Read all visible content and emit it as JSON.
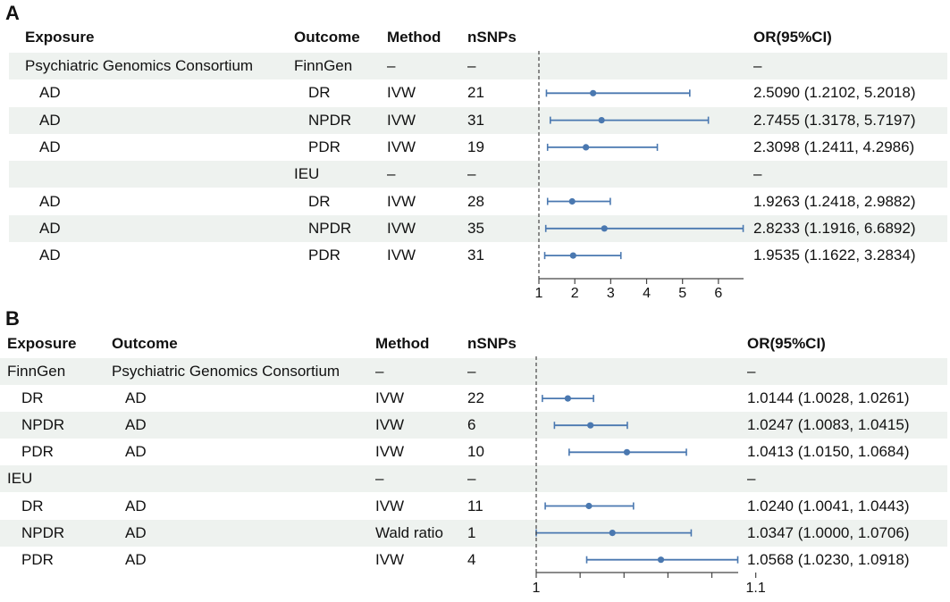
{
  "chart_data": [
    {
      "panel_label": "A",
      "type": "forest",
      "headers": {
        "exposure": "Exposure",
        "outcome": "Outcome",
        "method": "Method",
        "nsnps": "nSNPs",
        "or": "OR(95%CI)"
      },
      "rows": [
        {
          "exposure": "Psychiatric Genomics Consortium",
          "outcome": "FinnGen",
          "method": "–",
          "nsnps": "–",
          "or_text": "–",
          "or": null,
          "lower": null,
          "upper": null
        },
        {
          "exposure": "AD",
          "outcome": "DR",
          "method": "IVW",
          "nsnps": "21",
          "or_text": "2.5090 (1.2102, 5.2018)",
          "or": 2.509,
          "lower": 1.2102,
          "upper": 5.2018
        },
        {
          "exposure": "AD",
          "outcome": "NPDR",
          "method": "IVW",
          "nsnps": "31",
          "or_text": "2.7455 (1.3178, 5.7197)",
          "or": 2.7455,
          "lower": 1.3178,
          "upper": 5.7197
        },
        {
          "exposure": "AD",
          "outcome": "PDR",
          "method": "IVW",
          "nsnps": "19",
          "or_text": "2.3098 (1.2411, 4.2986)",
          "or": 2.3098,
          "lower": 1.2411,
          "upper": 4.2986
        },
        {
          "exposure": "",
          "outcome": "IEU",
          "method": "–",
          "nsnps": "–",
          "or_text": "–",
          "or": null,
          "lower": null,
          "upper": null
        },
        {
          "exposure": "AD",
          "outcome": "DR",
          "method": "IVW",
          "nsnps": "28",
          "or_text": "1.9263 (1.2418, 2.9882)",
          "or": 1.9263,
          "lower": 1.2418,
          "upper": 2.9882
        },
        {
          "exposure": "AD",
          "outcome": "NPDR",
          "method": "IVW",
          "nsnps": "35",
          "or_text": "2.8233 (1.1916, 6.6892)",
          "or": 2.8233,
          "lower": 1.1916,
          "upper": 6.6892
        },
        {
          "exposure": "AD",
          "outcome": "PDR",
          "method": "IVW",
          "nsnps": "31",
          "or_text": "1.9535 (1.1622, 3.2834)",
          "or": 1.9535,
          "lower": 1.1622,
          "upper": 3.2834
        }
      ],
      "xlim": [
        1,
        6.7
      ],
      "ref_line": 1,
      "ticks": [
        1,
        2,
        3,
        4,
        5,
        6
      ],
      "tick_labels": [
        "1",
        "2",
        "3",
        "4",
        "5",
        "6"
      ]
    },
    {
      "panel_label": "B",
      "type": "forest",
      "headers": {
        "exposure": "Exposure",
        "outcome": "Outcome",
        "method": "Method",
        "nsnps": "nSNPs",
        "or": "OR(95%CI)"
      },
      "rows": [
        {
          "exposure": "FinnGen",
          "outcome": "Psychiatric Genomics Consortium",
          "method": "–",
          "nsnps": "–",
          "or_text": "–",
          "or": null,
          "lower": null,
          "upper": null
        },
        {
          "exposure": "DR",
          "outcome": "AD",
          "method": "IVW",
          "nsnps": "22",
          "or_text": "1.0144 (1.0028, 1.0261)",
          "or": 1.0144,
          "lower": 1.0028,
          "upper": 1.0261
        },
        {
          "exposure": "NPDR",
          "outcome": "AD",
          "method": "IVW",
          "nsnps": "6",
          "or_text": "1.0247 (1.0083, 1.0415)",
          "or": 1.0247,
          "lower": 1.0083,
          "upper": 1.0415
        },
        {
          "exposure": "PDR",
          "outcome": "AD",
          "method": "IVW",
          "nsnps": "10",
          "or_text": "1.0413 (1.0150, 1.0684)",
          "or": 1.0413,
          "lower": 1.015,
          "upper": 1.0684
        },
        {
          "exposure": "IEU",
          "outcome": "",
          "method": "–",
          "nsnps": "–",
          "or_text": "–",
          "or": null,
          "lower": null,
          "upper": null
        },
        {
          "exposure": "DR",
          "outcome": "AD",
          "method": "IVW",
          "nsnps": "11",
          "or_text": "1.0240 (1.0041, 1.0443)",
          "or": 1.024,
          "lower": 1.0041,
          "upper": 1.0443
        },
        {
          "exposure": "NPDR",
          "outcome": "AD",
          "method": "Wald ratio",
          "nsnps": "1",
          "or_text": "1.0347 (1.0000, 1.0706)",
          "or": 1.0347,
          "lower": 1.0,
          "upper": 1.0706
        },
        {
          "exposure": "PDR",
          "outcome": "AD",
          "method": "IVW",
          "nsnps": "4",
          "or_text": "1.0568 (1.0230, 1.0918)",
          "or": 1.0568,
          "lower": 1.023,
          "upper": 1.0918
        }
      ],
      "xlim": [
        1,
        1.092
      ],
      "ref_line": 1,
      "ticks": [
        1,
        1.02,
        1.04,
        1.06,
        1.08,
        1.1
      ],
      "tick_labels": [
        "1",
        "",
        "",
        "",
        "",
        "1.1"
      ]
    }
  ],
  "colors": {
    "line": "#4a78b0",
    "band": "#eef2ef",
    "axis": "#444444"
  }
}
